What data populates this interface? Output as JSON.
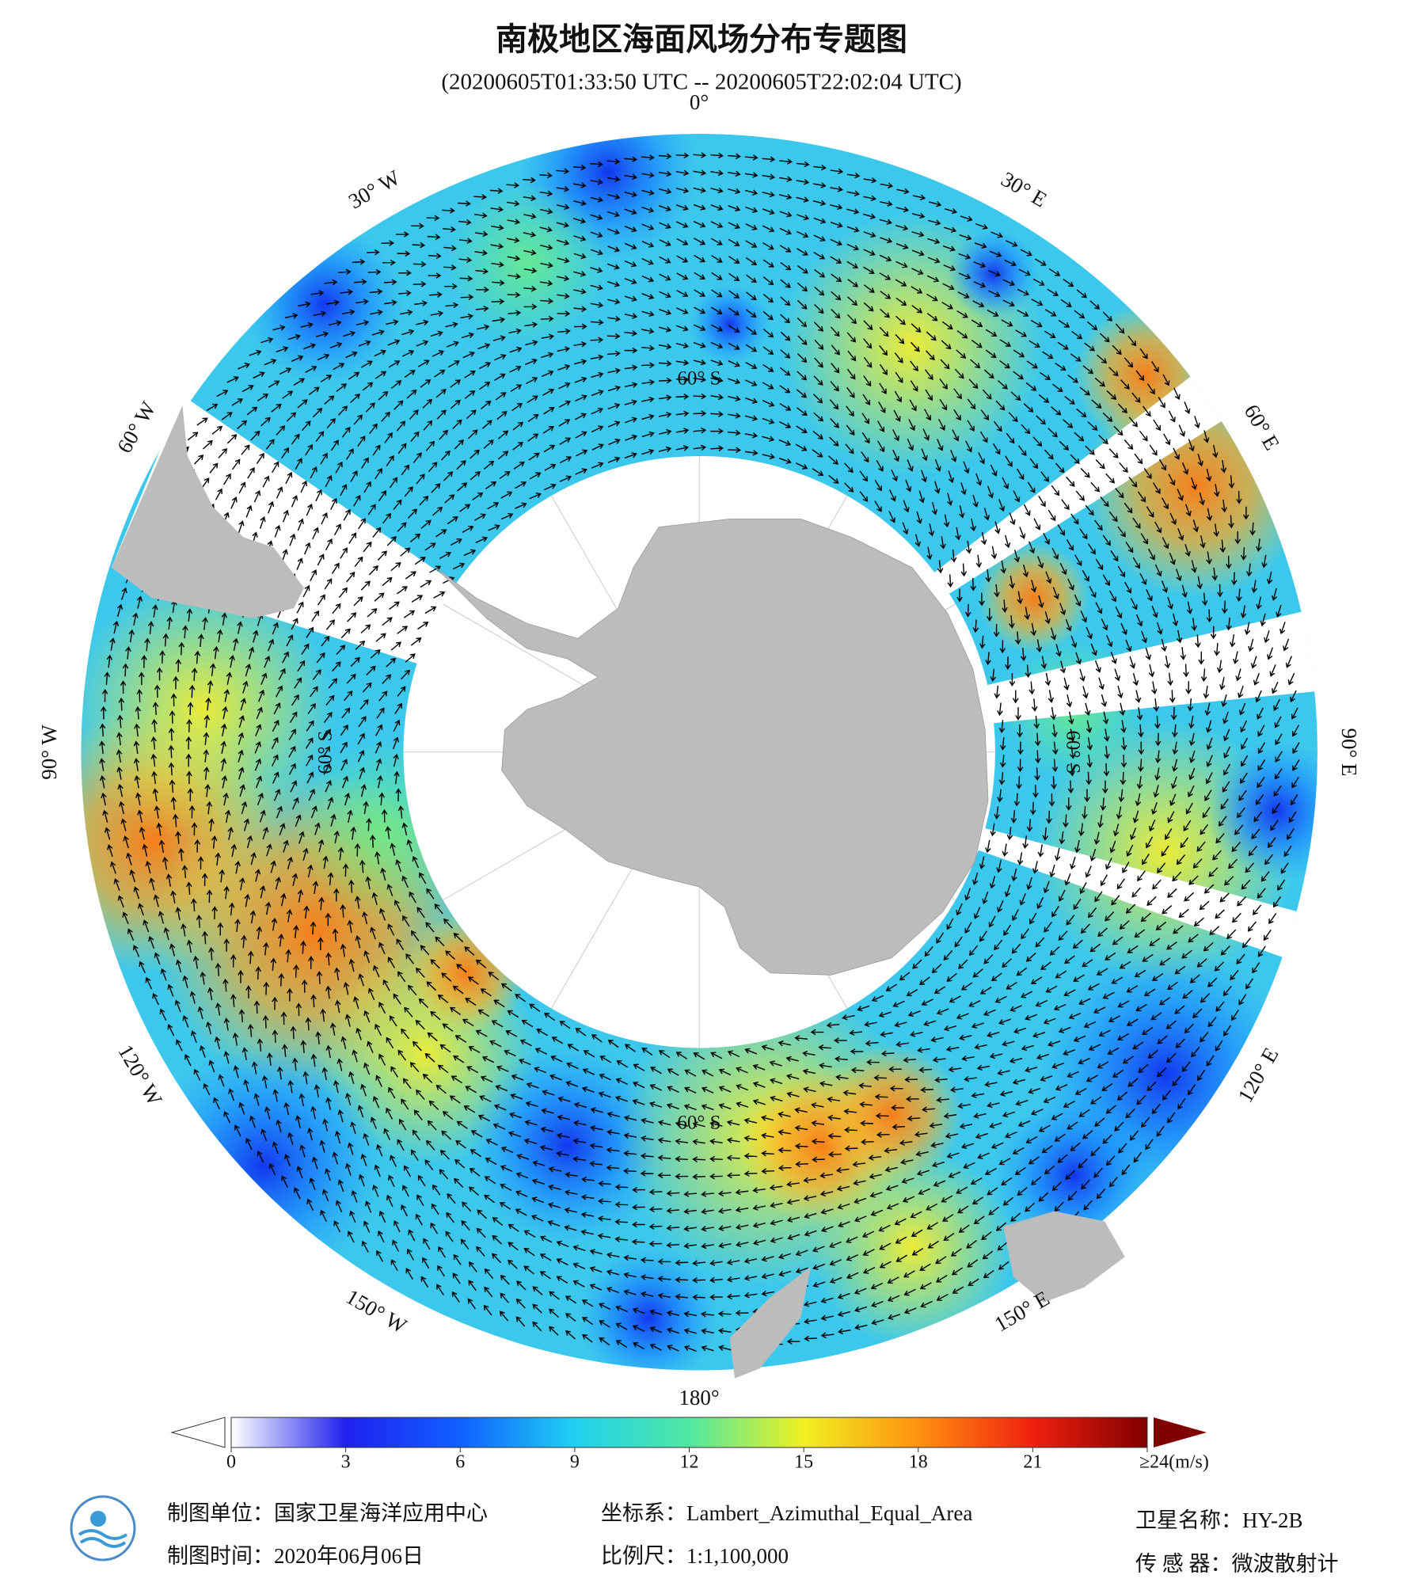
{
  "header": {
    "title": "南极地区海面风场分布专题图",
    "subtitle": "(20200605T01:33:50 UTC -- 20200605T22:02:04 UTC)"
  },
  "map": {
    "lon_labels": [
      "0°",
      "30° E",
      "60° E",
      "90° E",
      "120° E",
      "150° E",
      "180°",
      "150° W",
      "120° W",
      "90° W",
      "60° W",
      "30° W"
    ],
    "lat_labels": [
      "60° S",
      "60° S",
      "60° S",
      "60° S"
    ]
  },
  "colorbar": {
    "range": [
      0,
      24
    ],
    "ticks": [
      0,
      3,
      6,
      9,
      12,
      15,
      18,
      21,
      {
        "value": 24,
        "label": "≥24(m/s)"
      }
    ],
    "colors": [
      "#ffffff",
      "#2020f0",
      "#1060ff",
      "#20d0f0",
      "#50e8a0",
      "#f0f020",
      "#ff9010",
      "#f02010",
      "#800000"
    ]
  },
  "footer": {
    "unit": "制图单位：国家卫星海洋应用中心",
    "date": "制图时间：2020年06月06日",
    "crs": "坐标系：Lambert_Azimuthal_Equal_Area",
    "scale": "比例尺：1:1,100,000",
    "satellite": "卫星名称：HY-2B",
    "sensor": "传 感 器：微波散射计"
  }
}
